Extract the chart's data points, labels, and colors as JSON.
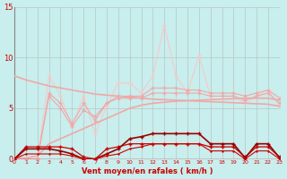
{
  "xlabel": "Vent moyen/en rafales ( km/h )",
  "xlim": [
    0,
    23
  ],
  "ylim": [
    0,
    15
  ],
  "yticks": [
    0,
    5,
    10,
    15
  ],
  "xticks": [
    0,
    1,
    2,
    3,
    4,
    5,
    6,
    7,
    8,
    9,
    10,
    11,
    12,
    13,
    14,
    15,
    16,
    17,
    18,
    19,
    20,
    21,
    22,
    23
  ],
  "background_color": "#c8eeed",
  "grid_color": "#b0b0b0",
  "x": [
    0,
    1,
    2,
    3,
    4,
    5,
    6,
    7,
    8,
    9,
    10,
    11,
    12,
    13,
    14,
    15,
    16,
    17,
    18,
    19,
    20,
    21,
    22,
    23
  ],
  "line_peak": [
    0.0,
    0.0,
    0.0,
    8.2,
    6.2,
    3.2,
    6.2,
    2.5,
    5.2,
    7.5,
    7.5,
    6.5,
    8.2,
    13.2,
    8.2,
    6.5,
    10.2,
    6.2,
    6.2,
    6.2,
    5.5,
    6.2,
    6.8,
    5.2
  ],
  "line_mid1": [
    0.0,
    0.0,
    0.0,
    6.2,
    5.0,
    3.2,
    4.8,
    4.2,
    5.5,
    6.0,
    6.0,
    6.0,
    6.5,
    6.5,
    6.5,
    6.5,
    6.5,
    6.2,
    6.2,
    6.2,
    5.8,
    6.2,
    6.5,
    5.5
  ],
  "line_mid2": [
    0.0,
    0.0,
    0.0,
    6.5,
    5.5,
    3.5,
    5.5,
    3.8,
    5.5,
    6.2,
    6.2,
    6.2,
    7.0,
    7.0,
    7.0,
    6.8,
    6.8,
    6.5,
    6.5,
    6.5,
    6.2,
    6.5,
    6.8,
    6.0
  ],
  "line_trend_down": [
    8.2,
    7.8,
    7.5,
    7.2,
    7.0,
    6.8,
    6.6,
    6.4,
    6.3,
    6.2,
    6.1,
    6.0,
    5.9,
    5.85,
    5.8,
    5.75,
    5.7,
    5.65,
    5.6,
    5.55,
    5.5,
    5.45,
    5.4,
    5.2
  ],
  "line_trend_up": [
    0.0,
    0.1,
    0.3,
    1.5,
    2.0,
    2.5,
    3.0,
    3.5,
    4.0,
    4.5,
    5.0,
    5.3,
    5.5,
    5.6,
    5.7,
    5.75,
    5.8,
    5.85,
    5.9,
    5.95,
    6.0,
    6.0,
    6.0,
    5.8
  ],
  "line_dark1": [
    0.0,
    1.2,
    1.2,
    1.2,
    1.2,
    1.0,
    0.2,
    0.0,
    1.0,
    1.2,
    1.5,
    1.5,
    1.5,
    1.5,
    1.5,
    1.5,
    1.5,
    1.2,
    1.2,
    1.2,
    0.2,
    1.2,
    1.2,
    0.2
  ],
  "line_dark2": [
    0.0,
    1.0,
    1.0,
    1.0,
    0.8,
    0.5,
    0.0,
    0.0,
    0.5,
    1.0,
    2.0,
    2.2,
    2.5,
    2.5,
    2.5,
    2.5,
    2.5,
    1.5,
    1.5,
    1.5,
    0.1,
    1.5,
    1.5,
    0.1
  ],
  "line_dark3": [
    0.0,
    0.5,
    0.5,
    0.5,
    0.5,
    0.3,
    0.0,
    0.0,
    0.3,
    0.5,
    1.0,
    1.2,
    1.5,
    1.5,
    1.5,
    1.5,
    1.5,
    0.8,
    0.8,
    0.8,
    0.0,
    0.8,
    0.8,
    0.0
  ],
  "line_flat": [
    0.0,
    0.0,
    0.0,
    0.0,
    0.0,
    0.0,
    0.0,
    0.0,
    0.0,
    0.0,
    0.0,
    0.0,
    0.0,
    0.0,
    0.0,
    0.0,
    0.0,
    0.0,
    0.0,
    0.0,
    0.0,
    0.0,
    0.0,
    0.0
  ],
  "color_light": "#f0a8a8",
  "color_light2": "#f8c8c8",
  "color_dark": "#cc0000",
  "color_darkred": "#990000"
}
